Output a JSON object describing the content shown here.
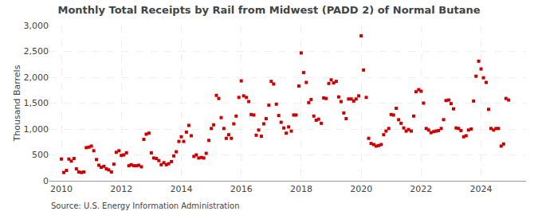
{
  "chart_data": {
    "type": "scatter",
    "title": "Monthly Total Receipts by Rail from Midwest (PADD 2) of Normal Butane",
    "ylabel": "Thousand Barrels",
    "annotations": [
      "Source: U.S. Energy Information Administration"
    ],
    "color": "#cc0000",
    "marker": "square",
    "grid": true,
    "ylim": [
      0,
      3000
    ],
    "yticks": [
      0,
      500,
      {
        "value": 1000,
        "label": "1,000"
      },
      {
        "value": 1500,
        "label": "1,500"
      },
      {
        "value": 2000,
        "label": "2,000"
      },
      {
        "value": 2500,
        "label": "2,500"
      },
      {
        "value": 3000,
        "label": "3,000"
      }
    ],
    "xlim": [
      2009.6,
      2025.5
    ],
    "xticks": [
      2010,
      2012,
      2014,
      2016,
      2018,
      2020,
      2022,
      2024
    ],
    "x": [
      2010.0,
      2010.08,
      2010.17,
      2010.25,
      2010.33,
      2010.42,
      2010.5,
      2010.58,
      2010.67,
      2010.75,
      2010.83,
      2010.92,
      2011.0,
      2011.08,
      2011.17,
      2011.25,
      2011.33,
      2011.42,
      2011.5,
      2011.58,
      2011.67,
      2011.75,
      2011.83,
      2011.92,
      2012.0,
      2012.08,
      2012.17,
      2012.25,
      2012.33,
      2012.42,
      2012.5,
      2012.58,
      2012.67,
      2012.75,
      2012.83,
      2012.92,
      2013.0,
      2013.08,
      2013.17,
      2013.25,
      2013.33,
      2013.42,
      2013.5,
      2013.58,
      2013.67,
      2013.75,
      2013.83,
      2013.92,
      2014.0,
      2014.08,
      2014.17,
      2014.25,
      2014.33,
      2014.42,
      2014.5,
      2014.58,
      2014.67,
      2014.75,
      2014.83,
      2014.92,
      2015.0,
      2015.08,
      2015.17,
      2015.25,
      2015.33,
      2015.42,
      2015.5,
      2015.58,
      2015.67,
      2015.75,
      2015.83,
      2015.92,
      2016.0,
      2016.08,
      2016.17,
      2016.25,
      2016.33,
      2016.42,
      2016.5,
      2016.58,
      2016.67,
      2016.75,
      2016.83,
      2016.92,
      2017.0,
      2017.08,
      2017.17,
      2017.25,
      2017.33,
      2017.42,
      2017.5,
      2017.58,
      2017.67,
      2017.75,
      2017.83,
      2017.92,
      2018.0,
      2018.08,
      2018.17,
      2018.25,
      2018.33,
      2018.42,
      2018.5,
      2018.58,
      2018.67,
      2018.75,
      2018.83,
      2018.92,
      2019.0,
      2019.08,
      2019.17,
      2019.25,
      2019.33,
      2019.42,
      2019.5,
      2019.58,
      2019.67,
      2019.75,
      2019.83,
      2019.92,
      2020.0,
      2020.08,
      2020.17,
      2020.25,
      2020.33,
      2020.42,
      2020.5,
      2020.58,
      2020.67,
      2020.75,
      2020.83,
      2020.92,
      2021.0,
      2021.08,
      2021.17,
      2021.25,
      2021.33,
      2021.42,
      2021.5,
      2021.58,
      2021.67,
      2021.75,
      2021.83,
      2021.92,
      2022.0,
      2022.08,
      2022.17,
      2022.25,
      2022.33,
      2022.42,
      2022.5,
      2022.58,
      2022.67,
      2022.75,
      2022.83,
      2022.92,
      2023.0,
      2023.08,
      2023.17,
      2023.25,
      2023.33,
      2023.42,
      2023.5,
      2023.58,
      2023.67,
      2023.75,
      2023.83,
      2023.92,
      2024.0,
      2024.08,
      2024.17,
      2024.25,
      2024.33,
      2024.42,
      2024.5,
      2024.58,
      2024.67,
      2024.75,
      2024.83,
      2024.92
    ],
    "values": [
      420,
      160,
      200,
      420,
      380,
      430,
      230,
      170,
      160,
      170,
      640,
      650,
      670,
      580,
      410,
      300,
      260,
      280,
      230,
      210,
      170,
      320,
      550,
      580,
      490,
      500,
      540,
      290,
      310,
      290,
      290,
      300,
      270,
      800,
      900,
      920,
      540,
      440,
      430,
      390,
      310,
      350,
      310,
      330,
      370,
      480,
      560,
      760,
      850,
      760,
      940,
      1070,
      870,
      470,
      500,
      440,
      450,
      440,
      530,
      780,
      1010,
      1080,
      1650,
      1590,
      1220,
      1010,
      820,
      890,
      820,
      1100,
      1250,
      1610,
      1930,
      1640,
      1610,
      1530,
      1280,
      1270,
      880,
      980,
      860,
      1100,
      1200,
      1460,
      1920,
      1870,
      1480,
      1260,
      1130,
      1020,
      920,
      1040,
      960,
      1270,
      1270,
      1830,
      2470,
      2090,
      1900,
      1510,
      1570,
      1250,
      1170,
      1190,
      1110,
      1600,
      1590,
      1880,
      1950,
      1890,
      1920,
      1620,
      1530,
      1310,
      1200,
      1580,
      1580,
      1540,
      1580,
      1640,
      2800,
      2140,
      1610,
      820,
      720,
      700,
      670,
      680,
      700,
      890,
      960,
      1010,
      1280,
      1270,
      1400,
      1180,
      1110,
      1020,
      960,
      990,
      960,
      1250,
      1720,
      1760,
      1730,
      1500,
      1010,
      980,
      930,
      950,
      960,
      970,
      1010,
      1180,
      1550,
      1560,
      1490,
      1390,
      1020,
      1010,
      970,
      850,
      870,
      980,
      1000,
      1540,
      2020,
      2310,
      2160,
      1990,
      1900,
      1380,
      1010,
      980,
      1010,
      1010,
      670,
      710,
      1590,
      1560
    ]
  }
}
